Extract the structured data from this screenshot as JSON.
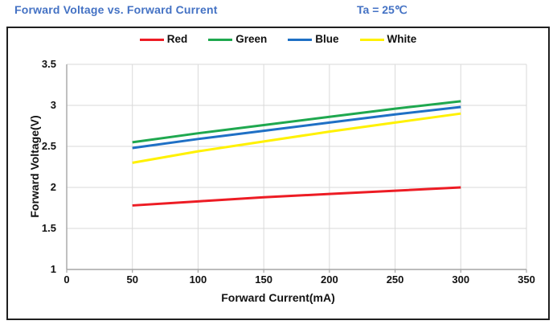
{
  "header": {
    "title": "Forward Voltage vs. Forward Current",
    "condition": "Ta = 25℃",
    "title_color": "#4472C4"
  },
  "chart_data": {
    "type": "line",
    "title": "Forward Voltage vs. Forward Current",
    "condition": "Ta = 25℃",
    "xlabel": "Forward Current(mA)",
    "ylabel": "Forward Voltage(V)",
    "xlim": [
      0,
      350
    ],
    "ylim": [
      1,
      3.5
    ],
    "x_ticks": [
      0,
      50,
      100,
      150,
      200,
      250,
      300,
      350
    ],
    "x_tick_labels": [
      "0",
      "50",
      "100",
      "150",
      "200",
      "250",
      "300",
      "350"
    ],
    "y_ticks": [
      1,
      1.5,
      2,
      2.5,
      3,
      3.5
    ],
    "y_tick_labels": [
      "1",
      "1.5",
      "2",
      "2.5",
      "3",
      "3.5"
    ],
    "grid": true,
    "legend_position": "top-center",
    "x": [
      50,
      100,
      150,
      200,
      250,
      300
    ],
    "series": [
      {
        "name": "Red",
        "color": "#ED1C24",
        "values": [
          1.78,
          1.83,
          1.88,
          1.92,
          1.96,
          2.0
        ]
      },
      {
        "name": "Green",
        "color": "#1FA84F",
        "values": [
          2.55,
          2.66,
          2.76,
          2.86,
          2.96,
          3.05
        ]
      },
      {
        "name": "Blue",
        "color": "#1F70C5",
        "values": [
          2.48,
          2.59,
          2.69,
          2.79,
          2.89,
          2.98
        ]
      },
      {
        "name": "White",
        "color": "#FFF100",
        "values": [
          2.3,
          2.44,
          2.56,
          2.68,
          2.79,
          2.9
        ]
      }
    ],
    "style": {
      "gridline_color": "#d9d9d9",
      "axis_color": "#a6a6a6",
      "line_width": 3
    }
  }
}
